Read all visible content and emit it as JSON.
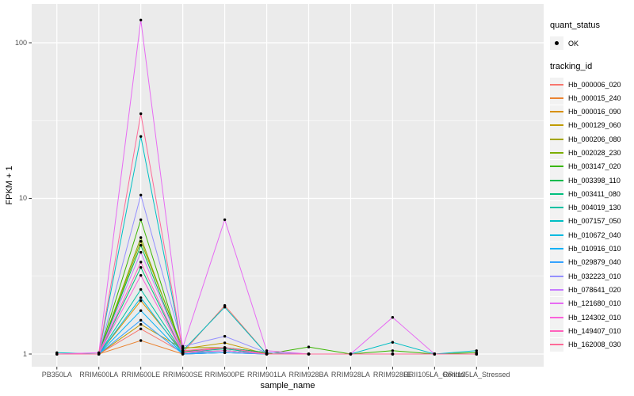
{
  "figure": {
    "y_axis": {
      "title": "FPKM + 1",
      "tick_labels": [
        "100",
        "10",
        "1"
      ],
      "tick_values": [
        100,
        10,
        1
      ],
      "minor_grid_values": [
        31.6228,
        3.1623
      ],
      "scale": "log10"
    },
    "x_axis": {
      "title": "sample_name"
    },
    "colors": {
      "panel_bg": "#EBEBEB",
      "grid": "#FFFFFF",
      "point": "#000000",
      "legend_key_bg": "#F2F2F2",
      "tick_text": "#4D4D4D",
      "title_text": "#000000",
      "tick_mark": "#333333"
    }
  },
  "legend": {
    "quant_status": {
      "title": "quant_status",
      "items": [
        {
          "label": "OK",
          "marker": "point"
        }
      ]
    },
    "tracking_id": {
      "title": "tracking_id"
    }
  },
  "chart_data": {
    "type": "line",
    "title": "",
    "xlabel": "sample_name",
    "ylabel": "FPKM + 1",
    "yscale": "log10",
    "ylim": [
      1,
      160
    ],
    "grid": true,
    "legend_position": "right",
    "point_marker": "small black point on every observation",
    "x": [
      "PB350LA",
      "RRIM600LA",
      "RRIM600LE",
      "RRIM600SE",
      "RRIM600PE",
      "RRIM901LA",
      "RRIM928BA",
      "RRIM928LA",
      "RRIM928LE",
      "RRII105LA_Control",
      "RRII105LA_Stressed"
    ],
    "series": [
      {
        "name": "Hb_000006_020",
        "color": "#F8766D",
        "values": [
          1,
          1,
          1.45,
          1.02,
          2.05,
          1,
          1,
          1,
          1,
          1,
          1
        ]
      },
      {
        "name": "Hb_000015_240",
        "color": "#EA8331",
        "values": [
          1,
          1,
          1.22,
          1,
          1.02,
          1,
          1,
          1,
          1,
          1,
          1
        ]
      },
      {
        "name": "Hb_000016_090",
        "color": "#D89000",
        "values": [
          1,
          1,
          2.2,
          1.03,
          1.1,
          1,
          1,
          1,
          1,
          1,
          1
        ]
      },
      {
        "name": "Hb_000129_060",
        "color": "#C09B00",
        "values": [
          1,
          1,
          1.55,
          1.08,
          1.18,
          1,
          1,
          1,
          1,
          1,
          1
        ]
      },
      {
        "name": "Hb_000206_080",
        "color": "#A3A500",
        "values": [
          1,
          1,
          5.3,
          1.1,
          1.1,
          1.02,
          1,
          1,
          1,
          1,
          1
        ]
      },
      {
        "name": "Hb_002028_230",
        "color": "#7CAE00",
        "values": [
          1,
          1,
          5.6,
          1.05,
          1.08,
          1,
          1,
          1,
          1,
          1,
          1
        ]
      },
      {
        "name": "Hb_003147_020",
        "color": "#39B600",
        "values": [
          1,
          1,
          7.3,
          1.02,
          1.05,
          1,
          1.11,
          1,
          1.05,
          1,
          1.02
        ]
      },
      {
        "name": "Hb_003398_110",
        "color": "#00BB4E",
        "values": [
          1,
          1,
          5.0,
          1.03,
          1.1,
          1.02,
          1,
          1,
          1,
          1,
          1
        ]
      },
      {
        "name": "Hb_003411_080",
        "color": "#00BF7D",
        "values": [
          1,
          1,
          3.6,
          1.02,
          1.05,
          1,
          1,
          1,
          1,
          1,
          1
        ]
      },
      {
        "name": "Hb_004019_130",
        "color": "#00C1A3",
        "values": [
          1,
          1,
          2.6,
          1.02,
          1.08,
          1,
          1,
          1,
          1,
          1,
          1
        ]
      },
      {
        "name": "Hb_007157_050",
        "color": "#00BFC4",
        "values": [
          1.02,
          1,
          25,
          1.05,
          2.0,
          1,
          1,
          1,
          1.19,
          1,
          1.05
        ]
      },
      {
        "name": "Hb_010672_040",
        "color": "#00BAE0",
        "values": [
          1,
          1,
          2.3,
          1,
          1.05,
          1,
          1,
          1,
          1,
          1,
          1
        ]
      },
      {
        "name": "Hb_010916_010",
        "color": "#00B0F6",
        "values": [
          1,
          1,
          1.9,
          1,
          1.02,
          1,
          1,
          1,
          1,
          1,
          1
        ]
      },
      {
        "name": "Hb_029879_040",
        "color": "#35A2FF",
        "values": [
          1,
          1,
          1.65,
          1,
          1.02,
          1,
          1,
          1,
          1,
          1,
          1
        ]
      },
      {
        "name": "Hb_032223_010",
        "color": "#9590FF",
        "values": [
          1,
          1,
          10.5,
          1.12,
          1.3,
          1.02,
          1,
          1,
          1,
          1,
          1
        ]
      },
      {
        "name": "Hb_078641_020",
        "color": "#C77CFF",
        "values": [
          1,
          1,
          4.5,
          1.05,
          1.1,
          1,
          1,
          1,
          1,
          1,
          1
        ]
      },
      {
        "name": "Hb_121680_010",
        "color": "#E76BF3",
        "values": [
          1,
          1.02,
          140,
          1.1,
          7.3,
          1.05,
          1,
          1,
          1.72,
          1,
          1
        ]
      },
      {
        "name": "Hb_124302_010",
        "color": "#FA62DB",
        "values": [
          1,
          1,
          3.2,
          1.02,
          1.05,
          1,
          1,
          1,
          1,
          1,
          1
        ]
      },
      {
        "name": "Hb_149407_010",
        "color": "#FF62BC",
        "values": [
          1,
          1,
          3.9,
          1.02,
          1.1,
          1,
          1,
          1,
          1,
          1,
          1
        ]
      },
      {
        "name": "Hb_162008_030",
        "color": "#FF6A98",
        "values": [
          1,
          1,
          35,
          1.05,
          1.1,
          1,
          1,
          1,
          1,
          1,
          1
        ]
      }
    ]
  }
}
